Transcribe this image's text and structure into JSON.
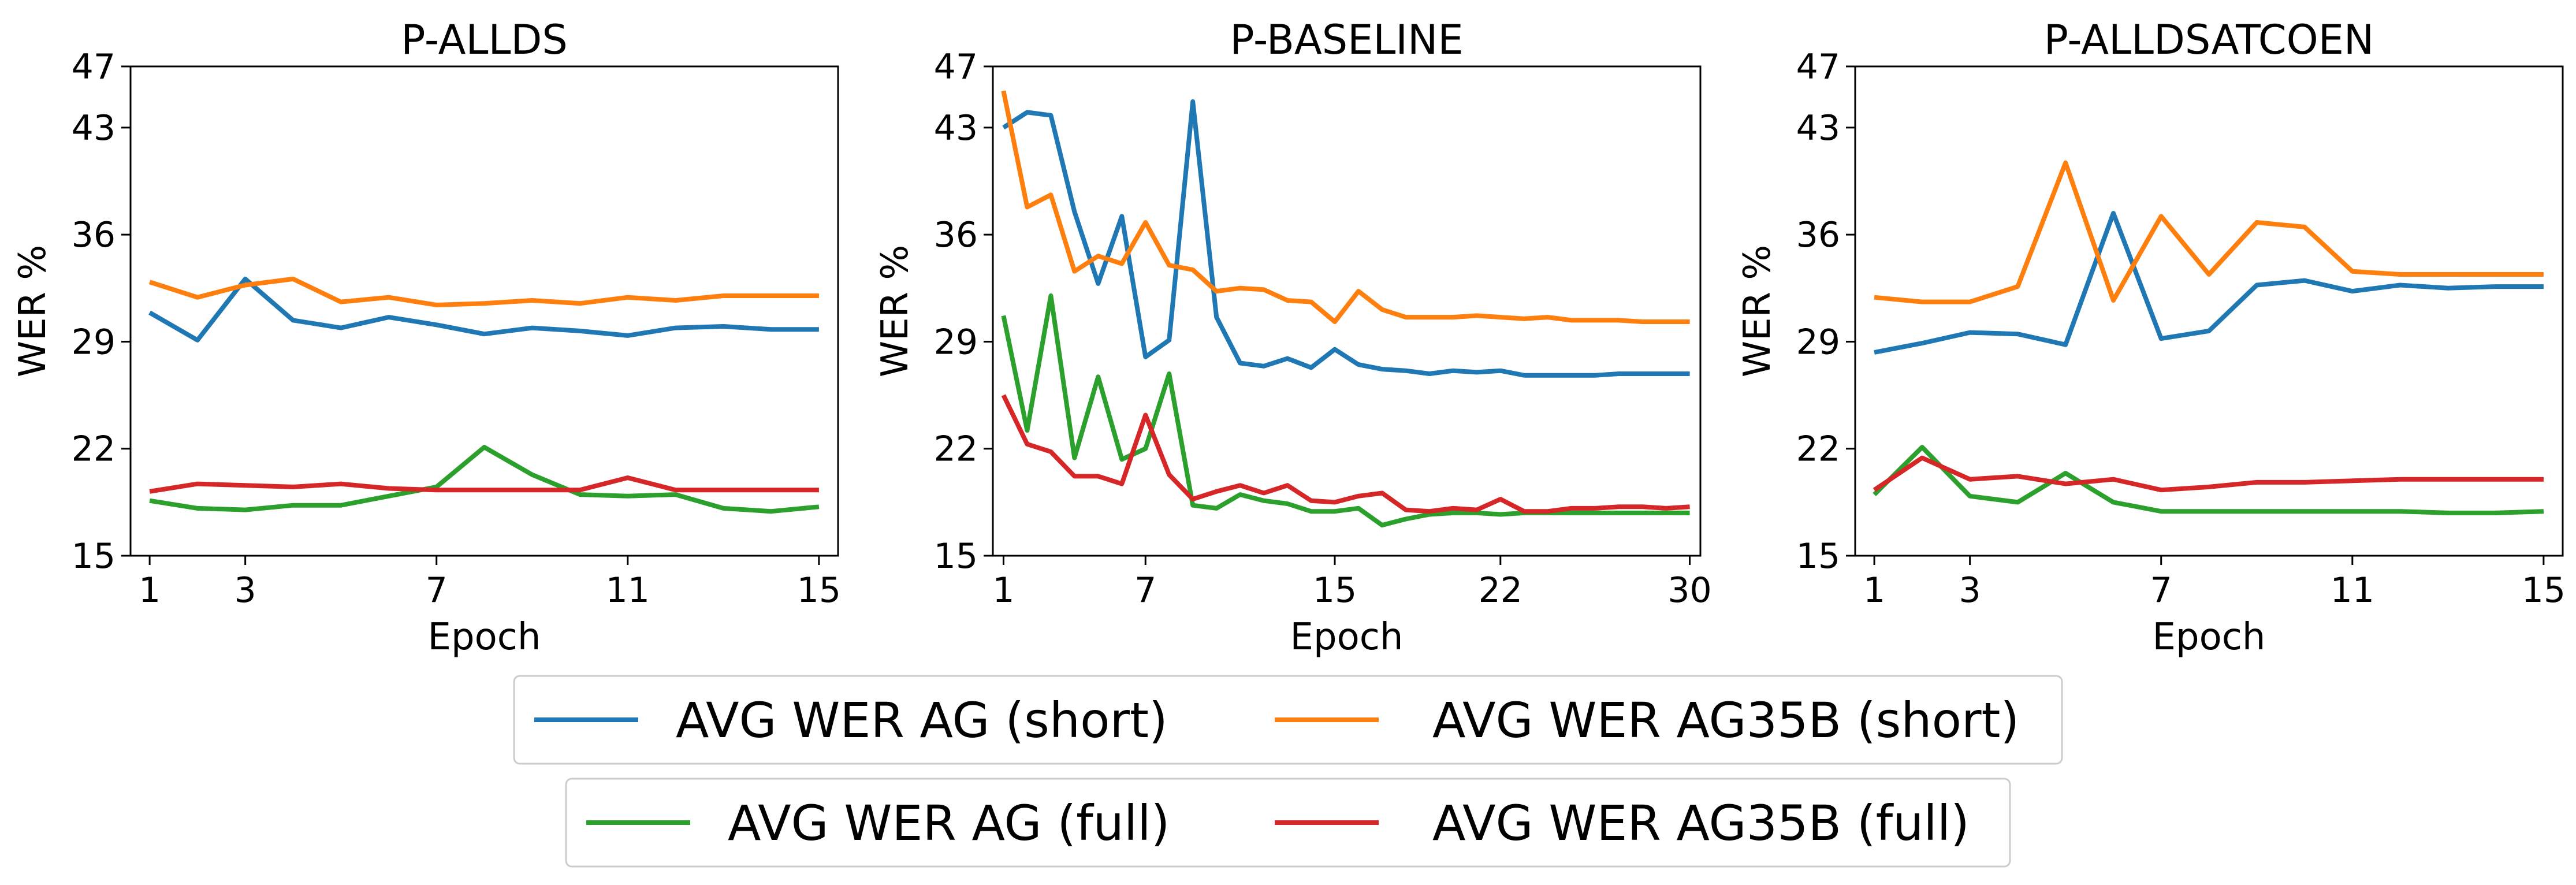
{
  "figure": {
    "legend_rows": [
      [
        "AVG WER AG (short)",
        "AVG WER AG35B (short)"
      ],
      [
        "AVG WER AG (full)",
        "AVG WER AG35B (full)"
      ]
    ]
  },
  "colors": {
    "AVG WER AG (short)": "#1f77b4",
    "AVG WER AG35B (short)": "#ff7f0e",
    "AVG WER AG (full)": "#2ca02c",
    "AVG WER AG35B (full)": "#d62728"
  },
  "chart_data": [
    {
      "type": "line",
      "title": "P-ALLDS",
      "xlabel": "Epoch",
      "ylabel": "WER %",
      "xlim": [
        0.6,
        15.4
      ],
      "ylim": [
        15,
        47
      ],
      "xticks": [
        1,
        3,
        7,
        11,
        15
      ],
      "yticks": [
        15,
        22,
        29,
        36,
        43,
        47
      ],
      "grid": false,
      "legend": "bottom",
      "x": [
        1,
        2,
        3,
        4,
        5,
        6,
        7,
        8,
        9,
        10,
        11,
        12,
        13,
        14,
        15
      ],
      "series": [
        {
          "name": "AVG WER AG (short)",
          "values": [
            30.9,
            29.1,
            33.1,
            30.4,
            29.9,
            30.6,
            30.1,
            29.5,
            29.9,
            29.7,
            29.4,
            29.9,
            30.0,
            29.8,
            29.8
          ]
        },
        {
          "name": "AVG WER AG35B (short)",
          "values": [
            32.9,
            31.9,
            32.7,
            33.1,
            31.6,
            31.9,
            31.4,
            31.5,
            31.7,
            31.5,
            31.9,
            31.7,
            32.0,
            32.0,
            32.0
          ]
        },
        {
          "name": "AVG WER AG (full)",
          "values": [
            18.6,
            18.1,
            18.0,
            18.3,
            18.3,
            18.9,
            19.5,
            22.1,
            20.3,
            19.0,
            18.9,
            19.0,
            18.1,
            17.9,
            18.2
          ]
        },
        {
          "name": "AVG WER AG35B (full)",
          "values": [
            19.2,
            19.7,
            19.6,
            19.5,
            19.7,
            19.4,
            19.3,
            19.3,
            19.3,
            19.3,
            20.1,
            19.3,
            19.3,
            19.3,
            19.3
          ]
        }
      ]
    },
    {
      "type": "line",
      "title": "P-BASELINE",
      "xlabel": "Epoch",
      "ylabel": "WER %",
      "xlim": [
        0.55,
        30.45
      ],
      "ylim": [
        15,
        47
      ],
      "xticks": [
        1,
        7,
        15,
        22,
        30
      ],
      "yticks": [
        15,
        22,
        29,
        36,
        43,
        47
      ],
      "grid": false,
      "legend": "bottom",
      "x": [
        1,
        2,
        3,
        4,
        5,
        6,
        7,
        8,
        9,
        10,
        11,
        12,
        13,
        14,
        15,
        16,
        17,
        18,
        19,
        20,
        21,
        22,
        23,
        24,
        25,
        26,
        27,
        28,
        29,
        30
      ],
      "series": [
        {
          "name": "AVG WER AG (short)",
          "values": [
            43.0,
            44.0,
            43.8,
            37.5,
            32.8,
            37.2,
            28.0,
            29.1,
            44.7,
            30.6,
            27.6,
            27.4,
            27.9,
            27.3,
            28.5,
            27.5,
            27.2,
            27.1,
            26.9,
            27.1,
            27.0,
            27.1,
            26.8,
            26.8,
            26.8,
            26.8,
            26.9,
            26.9,
            26.9,
            26.9
          ]
        },
        {
          "name": "AVG WER AG35B (short)",
          "values": [
            45.4,
            37.8,
            38.6,
            33.6,
            34.6,
            34.1,
            36.8,
            34.0,
            33.7,
            32.3,
            32.5,
            32.4,
            31.7,
            31.6,
            30.3,
            32.3,
            31.1,
            30.6,
            30.6,
            30.6,
            30.7,
            30.6,
            30.5,
            30.6,
            30.4,
            30.4,
            30.4,
            30.3,
            30.3,
            30.3
          ]
        },
        {
          "name": "AVG WER AG (full)",
          "values": [
            30.7,
            23.2,
            32.0,
            21.4,
            26.7,
            21.3,
            22.0,
            26.9,
            18.3,
            18.1,
            19.0,
            18.6,
            18.4,
            17.9,
            17.9,
            18.1,
            17.0,
            17.4,
            17.7,
            17.8,
            17.8,
            17.7,
            17.8,
            17.8,
            17.8,
            17.8,
            17.8,
            17.8,
            17.8,
            17.8
          ]
        },
        {
          "name": "AVG WER AG35B (full)",
          "values": [
            25.5,
            22.3,
            21.8,
            20.2,
            20.2,
            19.7,
            24.2,
            20.3,
            18.7,
            19.2,
            19.6,
            19.1,
            19.6,
            18.6,
            18.5,
            18.9,
            19.1,
            18.0,
            17.9,
            18.1,
            18.0,
            18.7,
            17.9,
            17.9,
            18.1,
            18.1,
            18.2,
            18.2,
            18.1,
            18.2
          ]
        }
      ]
    },
    {
      "type": "line",
      "title": "P-ALLDSATCOEN",
      "xlabel": "Epoch",
      "ylabel": "WER %",
      "xlim": [
        0.6,
        15.4
      ],
      "ylim": [
        15,
        47
      ],
      "xticks": [
        1,
        3,
        7,
        11,
        15
      ],
      "yticks": [
        15,
        22,
        29,
        36,
        43,
        47
      ],
      "grid": false,
      "legend": "bottom",
      "x": [
        1,
        2,
        3,
        4,
        5,
        6,
        7,
        8,
        9,
        10,
        11,
        12,
        13,
        14,
        15
      ],
      "series": [
        {
          "name": "AVG WER AG (short)",
          "values": [
            28.3,
            28.9,
            29.6,
            29.5,
            28.8,
            37.4,
            29.2,
            29.7,
            32.7,
            33.0,
            32.3,
            32.7,
            32.5,
            32.6,
            32.6
          ]
        },
        {
          "name": "AVG WER AG35B (short)",
          "values": [
            31.9,
            31.6,
            31.6,
            32.6,
            40.7,
            31.7,
            37.2,
            33.4,
            36.8,
            36.5,
            33.6,
            33.4,
            33.4,
            33.4,
            33.4
          ]
        },
        {
          "name": "AVG WER AG (full)",
          "values": [
            19.0,
            22.1,
            18.9,
            18.5,
            20.4,
            18.5,
            17.9,
            17.9,
            17.9,
            17.9,
            17.9,
            17.9,
            17.8,
            17.8,
            17.9
          ]
        },
        {
          "name": "AVG WER AG35B (full)",
          "values": [
            19.3,
            21.4,
            20.0,
            20.2,
            19.7,
            20.0,
            19.3,
            19.5,
            19.8,
            19.8,
            19.9,
            20.0,
            20.0,
            20.0,
            20.0
          ]
        }
      ]
    }
  ]
}
